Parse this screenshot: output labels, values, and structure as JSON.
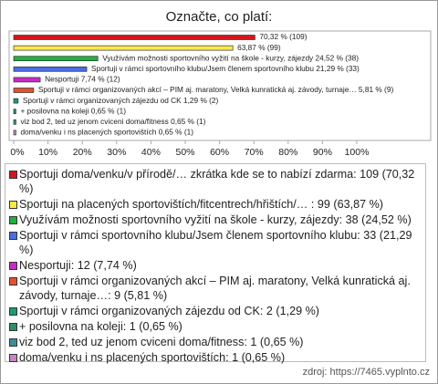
{
  "chart_data": {
    "type": "bar",
    "orientation": "horizontal",
    "title": "Označte, co platí:",
    "categories": [
      "Sportuji doma/venku/v přírodě/… zkrátka kde se to nabízí zdarma: 109 (70,32 %)",
      "Sportuji na placených sportovištích/fitcentrech/hřištích/… : 99 (63,87 %)",
      "Využívám možnosti sportovního vyžití na škole - kurzy, zájezdy: 38 (24,52 %)",
      "Sportuji v rámci sportovního klubu/Jsem členem sportovního klubu: 33 (21,29 %)",
      "Nesportuji: 12 (7,74 %)",
      "Sportuji v rámci organizovaných akcí – PIM aj. maratony, Velká kunratická aj. závody, turnaje…: 9 (5,81 %)",
      "Sportuji v rámci organizovaných zájezdu od CK: 2 (1,29 %)",
      "+ posilovna na koleji: 1 (0,65 %)",
      "viz bod 2, ted uz jenom cviceni doma/fitness: 1 (0,65 %)",
      "doma/venku i ns placených sportovištích: 1 (0,65 %)"
    ],
    "values": [
      70.32,
      63.87,
      24.52,
      21.29,
      7.74,
      5.81,
      1.29,
      0.65,
      0.65,
      0.65
    ],
    "value_labels": [
      "70,32 % (109)",
      "63,87 % (99)",
      "Využívám možnosti sportovního vyžití na škole - kurzy, zájezdy 24,52 % (38)",
      "Sportuji v rámci sportovního klubu/Jsem členem sportovního klubu 21,29 % (33)",
      "Nesportuji 7,74 % (12)",
      "Sportuji v rámci organizovaných akcí – PIM aj. maratony, Velká kunratická aj. závody, turnaje… 5,81 % (9)",
      "Sportuji v rámci organizovaných zájezdu od CK 1,29 % (2)",
      "+ posilovna na koleji 0,65 % (1)",
      "viz bod 2, ted uz jenom cviceni doma/fitness 0,65 % (1)",
      "doma/venku i ns placených sportovištích 0,65 % (1)"
    ],
    "colors": [
      "#d4161c",
      "#fbe84a",
      "#22b03c",
      "#4a6ee0",
      "#c72ac7",
      "#e4532c",
      "#1f9a6e",
      "#2c8f66",
      "#3a8f9c",
      "#c784c7"
    ],
    "xlim": [
      0,
      100
    ],
    "xticks": [
      {
        "value": 0,
        "label": "0%"
      },
      {
        "value": 10,
        "label": "10%"
      },
      {
        "value": 20,
        "label": "20%"
      },
      {
        "value": 30,
        "label": "30%"
      },
      {
        "value": 40,
        "label": "40%"
      },
      {
        "value": 50,
        "label": "50%"
      },
      {
        "value": 60,
        "label": "60%"
      },
      {
        "value": 70,
        "label": "70%"
      },
      {
        "value": 80,
        "label": "80%"
      },
      {
        "value": 90,
        "label": "90%"
      },
      {
        "value": 100,
        "label": "100%"
      }
    ],
    "grid": false,
    "source": "zdroj: https://7465.vyplnto.cz"
  }
}
